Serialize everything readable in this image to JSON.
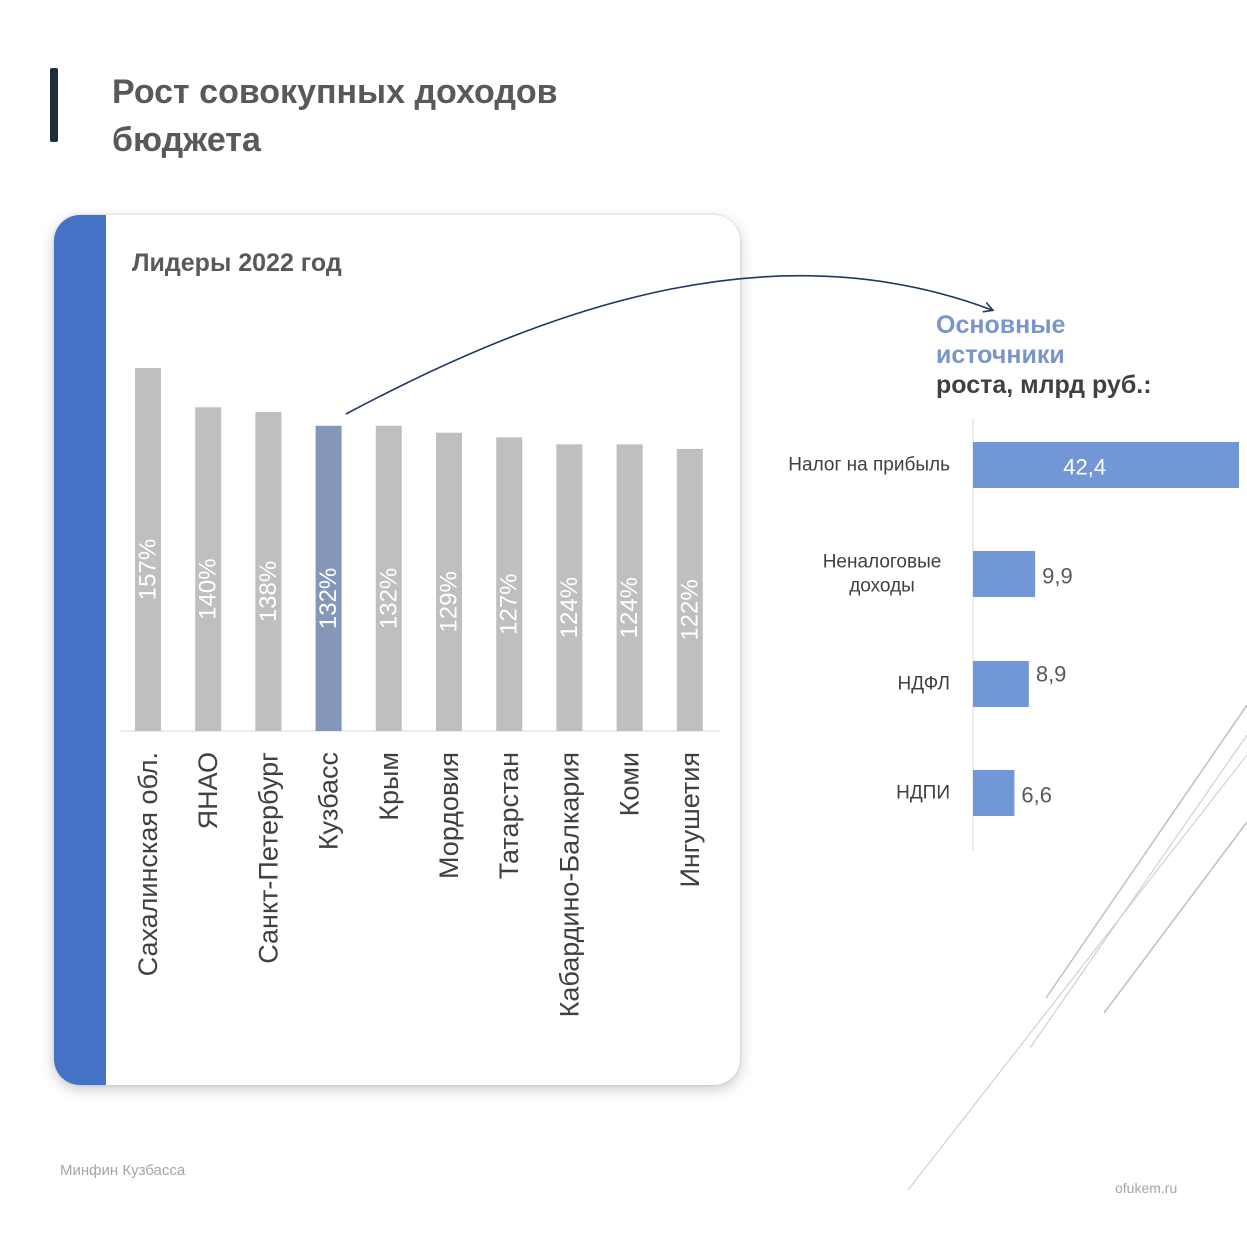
{
  "page_title_line1": "Рост совокупных доходов",
  "page_title_line2": "бюджета",
  "footer_left": "Минфин Кузбасса",
  "footer_right": "ofukem.ru",
  "sources_heading": {
    "line1": "Основные",
    "line2": "источники",
    "line3": "роста, млрд руб.:"
  },
  "colors": {
    "grey_bar": "#bfbfbf",
    "highlight_bar": "#8497b9",
    "source_bar": "#7197d6",
    "stripe": "#4472c4"
  },
  "chart_data": [
    {
      "type": "bar",
      "title": "Лидеры  2022 год",
      "categories": [
        "Сахалинская обл.",
        "ЯНАО",
        "Санкт-Петербург",
        "Кузбасс",
        "Крым",
        "Мордовия",
        "Татарстан",
        "Кабардино-Балкария",
        "Коми",
        "Ингушетия"
      ],
      "values": [
        157,
        140,
        138,
        132,
        132,
        129,
        127,
        124,
        124,
        122
      ],
      "value_labels": [
        "157%",
        "140%",
        "138%",
        "132%",
        "132%",
        "129%",
        "127%",
        "124%",
        "124%",
        "122%"
      ],
      "highlight": "Кузбасс",
      "orientation": "vertical",
      "grid": false
    },
    {
      "type": "bar",
      "orientation": "horizontal",
      "categories": [
        "Налог на прибыль",
        "Неналоговые доходы",
        "НДФЛ",
        "НДПИ"
      ],
      "values": [
        42.4,
        9.9,
        8.9,
        6.6
      ],
      "value_labels": [
        "42,4",
        "9,9",
        "8,9",
        "6,6"
      ],
      "grid": false
    }
  ]
}
